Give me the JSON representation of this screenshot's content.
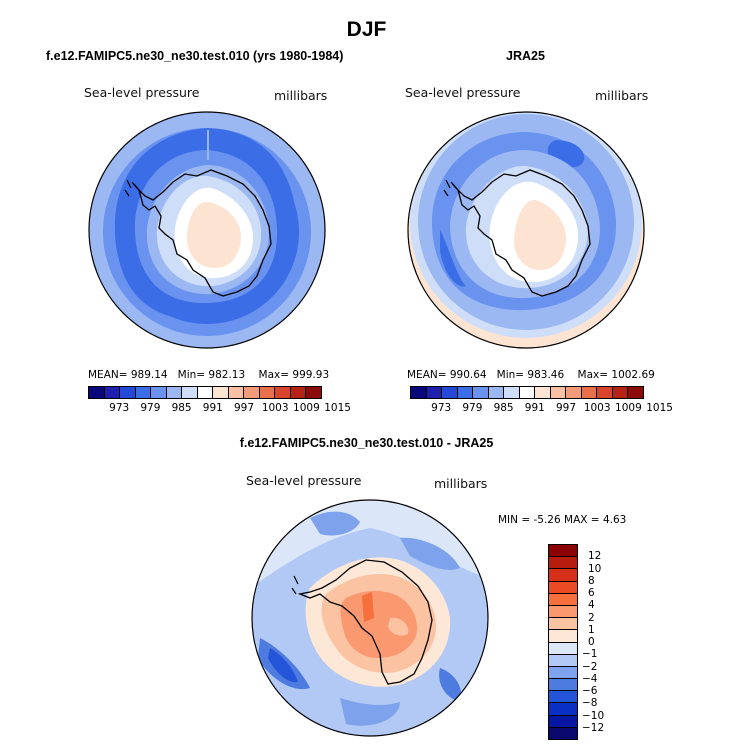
{
  "season_title": "DJF",
  "panels": {
    "model": {
      "title": "f.e12.FAMIPC5.ne30_ne30.test.010 (yrs 1980-1984)",
      "variable": "Sea-level pressure",
      "units": "millibars",
      "stats": {
        "mean_label": "MEAN=",
        "mean": "989.14",
        "min_label": "Min=",
        "min": "982.13",
        "max_label": "Max=",
        "max": "999.93"
      }
    },
    "obs": {
      "title": "JRA25",
      "variable": "Sea-level pressure",
      "units": "millibars",
      "stats": {
        "mean_label": "MEAN=",
        "mean": "990.64",
        "min_label": "Min=",
        "min": "983.46",
        "max_label": "Max=",
        "max": "1002.69"
      }
    },
    "diff": {
      "title": "f.e12.FAMIPC5.ne30_ne30.test.010 - JRA25",
      "variable": "Sea-level pressure",
      "units": "millibars",
      "minmax": {
        "min_label": "MIN =",
        "min": "-5.26",
        "max_label": "MAX =",
        "max": "4.63"
      }
    }
  },
  "abs_colorbar": {
    "labels": [
      "973",
      "979",
      "985",
      "991",
      "997",
      "1003",
      "1009",
      "1015"
    ],
    "colors": [
      "#08087a",
      "#1e1eaf",
      "#2448d8",
      "#3b6ee6",
      "#6993ee",
      "#9bb8f3",
      "#cfdef8",
      "#ffffff",
      "#fde4d2",
      "#f9c0a3",
      "#f29b78",
      "#e8704a",
      "#d9452c",
      "#b72217",
      "#8b0a0a"
    ]
  },
  "diff_colorbar": {
    "labels": [
      "12",
      "10",
      "8",
      "6",
      "4",
      "2",
      "1",
      "0",
      "-1",
      "-2",
      "-4",
      "-6",
      "-8",
      "-10",
      "-12"
    ],
    "colors": [
      "#8b0000",
      "#b81c0e",
      "#d7301a",
      "#ec4a25",
      "#f66f3c",
      "#fa9970",
      "#fcc3a3",
      "#fde8d8",
      "#dbe7f9",
      "#b1c9f4",
      "#7ea3ec",
      "#4e7be0",
      "#2454d8",
      "#0a2fc4",
      "#0715a3",
      "#0a0a6e"
    ]
  }
}
